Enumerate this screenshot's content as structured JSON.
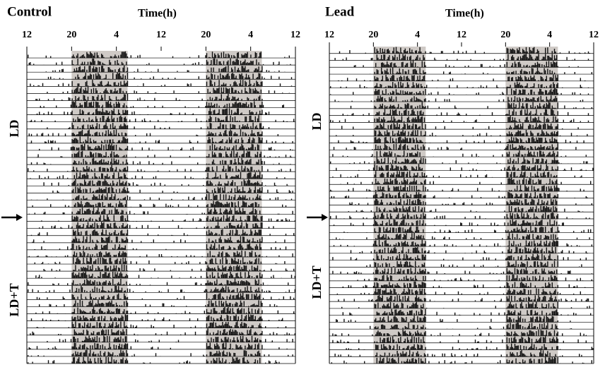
{
  "chart_data": [
    {
      "type": "actogram",
      "title": "Control",
      "x_label": "Time(h)",
      "xlim": [
        12,
        60
      ],
      "xticks": [
        12,
        20,
        {
          "value": 28,
          "label": "4"
        },
        {
          "value": 36,
          "label": "12"
        },
        {
          "value": 44,
          "label": "20"
        },
        {
          "value": 52,
          "label": "4"
        },
        {
          "value": 60,
          "label": "12"
        }
      ],
      "dark": [
        [
          20,
          30
        ],
        [
          44,
          54
        ]
      ],
      "phases": [
        "LD",
        "LD+T"
      ]
    },
    {
      "type": "actogram",
      "title": "Lead",
      "x_label": "Time(h)",
      "xlim": [
        12,
        60
      ],
      "xticks": [
        12,
        20,
        {
          "value": 28,
          "label": "4"
        },
        {
          "value": 36,
          "label": "12"
        },
        {
          "value": 44,
          "label": "20"
        },
        {
          "value": 52,
          "label": "4"
        },
        {
          "value": 60,
          "label": "12"
        }
      ],
      "dark": [
        [
          20,
          29.5
        ],
        [
          44,
          53.5
        ]
      ],
      "phases": [
        "LD",
        "LD+T"
      ]
    }
  ]
}
